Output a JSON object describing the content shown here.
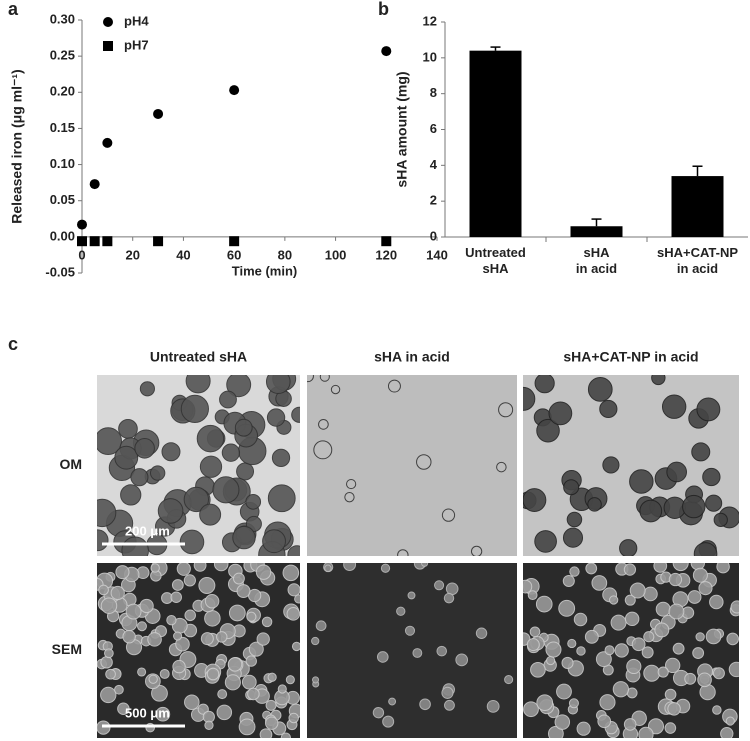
{
  "chart_data": [
    {
      "type": "scatter",
      "panel": "a",
      "x_label": "Time (min)",
      "y_label": "Released iron (μg ml⁻¹)",
      "xlim": [
        0,
        140
      ],
      "xticks": [
        0,
        20,
        40,
        60,
        80,
        100,
        120,
        140
      ],
      "ylim": [
        -0.05,
        0.3
      ],
      "yticks": [
        -0.05,
        {
          "value": 0,
          "label": "0.00"
        },
        0.05,
        {
          "value": 0.1,
          "label": "0.10"
        },
        0.15,
        {
          "value": 0.2,
          "label": "0.20"
        },
        0.25,
        {
          "value": 0.3,
          "label": "0.30"
        }
      ],
      "legend": "upper left",
      "series": [
        {
          "name": "pH4",
          "color": "#000000",
          "marker": "circle",
          "x": [
            0,
            5,
            10,
            30,
            60,
            120
          ],
          "values": [
            0.017,
            0.073,
            0.13,
            0.17,
            0.203,
            0.257
          ]
        },
        {
          "name": "pH7",
          "color": "#000000",
          "marker": "square",
          "x": [
            0,
            5,
            10,
            30,
            60,
            120
          ],
          "values": [
            -0.006,
            -0.006,
            -0.006,
            -0.006,
            -0.006,
            -0.006
          ]
        }
      ]
    },
    {
      "type": "bar",
      "panel": "b",
      "y_label": "sHA amount (mg)",
      "categories": [
        "Untreated\nsHA",
        "sHA\nin acid",
        "sHA+CAT-NP\nin acid"
      ],
      "values": [
        10.4,
        0.6,
        3.4
      ],
      "errors": [
        0.2,
        0.4,
        0.55
      ],
      "color": "#000000",
      "ylim": [
        0,
        12
      ],
      "yticks": [
        0,
        2,
        4,
        6,
        8,
        10,
        12
      ]
    }
  ],
  "figure_c": {
    "panel": "c",
    "columns": [
      "Untreated sHA",
      "sHA in acid",
      "sHA+CAT-NP in acid"
    ],
    "rows": [
      "OM",
      "SEM"
    ],
    "scale_bars": [
      "200 μm",
      "500 μm"
    ]
  }
}
